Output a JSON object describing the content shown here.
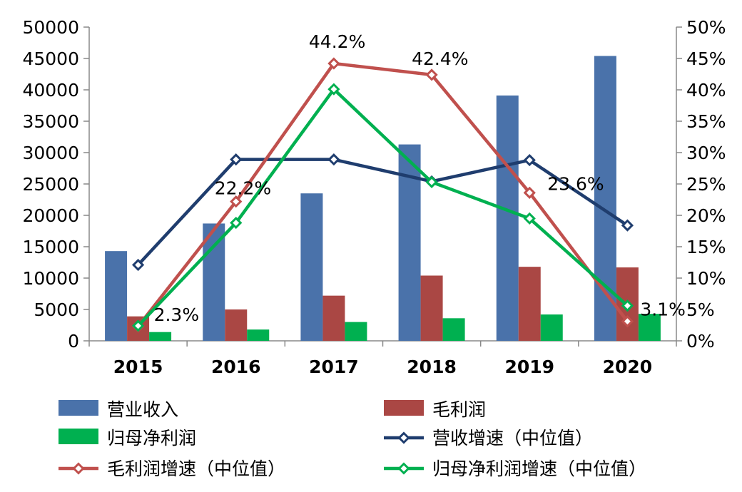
{
  "chart_data": {
    "type": "bar",
    "categories": [
      "2015",
      "2016",
      "2017",
      "2018",
      "2019",
      "2020"
    ],
    "left_axis": {
      "ylim": [
        0,
        50000
      ],
      "ticks": [
        "0",
        "5000",
        "10000",
        "15000",
        "20000",
        "25000",
        "30000",
        "35000",
        "40000",
        "45000",
        "50000"
      ]
    },
    "right_axis": {
      "ylim": [
        0,
        0.5
      ],
      "ticks": [
        "0%",
        "5%",
        "10%",
        "15%",
        "20%",
        "25%",
        "30%",
        "35%",
        "40%",
        "45%",
        "50%"
      ]
    },
    "bar_series": [
      {
        "name": "营业收入",
        "color": "#4a72aa",
        "values": [
          14300,
          18700,
          23500,
          31300,
          39100,
          45400
        ]
      },
      {
        "name": "毛利润",
        "color": "#aa4744",
        "values": [
          3900,
          5000,
          7200,
          10400,
          11800,
          11700
        ]
      },
      {
        "name": "归母净利润",
        "color": "#00b050",
        "values": [
          1400,
          1800,
          3000,
          3600,
          4200,
          4300
        ]
      }
    ],
    "line_series": [
      {
        "name": "营收增速（中位值）",
        "color": "#1f3d6e",
        "values": [
          0.121,
          0.289,
          0.289,
          0.254,
          0.288,
          0.184
        ]
      },
      {
        "name": "毛利润增速（中位值）",
        "color": "#c0504d",
        "values": [
          0.023,
          0.222,
          0.442,
          0.424,
          0.236,
          0.031
        ]
      },
      {
        "name": "归母净利润增速（中位值）",
        "color": "#00b050",
        "values": [
          0.024,
          0.188,
          0.401,
          0.253,
          0.195,
          0.056
        ]
      }
    ],
    "data_labels": [
      {
        "series": 1,
        "index": 0,
        "text": "2.3%"
      },
      {
        "series": 1,
        "index": 1,
        "text": "22.2%"
      },
      {
        "series": 1,
        "index": 2,
        "text": "44.2%"
      },
      {
        "series": 1,
        "index": 3,
        "text": "42.4%"
      },
      {
        "series": 1,
        "index": 4,
        "text": "23.6%"
      },
      {
        "series": 1,
        "index": 5,
        "text": "3.1%"
      }
    ],
    "legend_position": "bottom"
  }
}
